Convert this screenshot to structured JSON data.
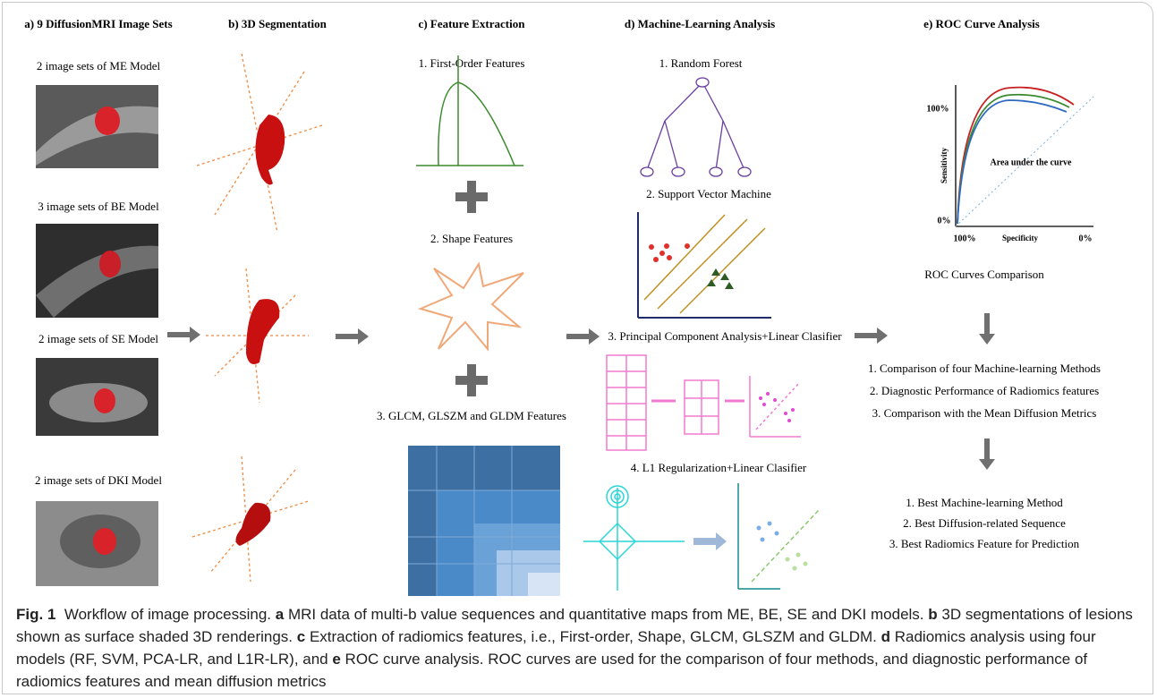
{
  "headings": [
    "a) 9 DiffusionMRI Image Sets",
    "b) 3D Segmentation",
    "c) Feature Extraction",
    "d) Machine-Learning Analysis",
    "e) ROC Curve Analysis"
  ],
  "image_sets": [
    "2 image sets of ME Model",
    "3 image sets of BE Model",
    "2 image sets of SE Model",
    "2 image sets of DKI Model"
  ],
  "features": [
    "1. First-Order Features",
    "2. Shape Features",
    "3. GLCM, GLSZM and GLDM Features"
  ],
  "ml_methods": [
    "1. Random Forest",
    "2. Support Vector Machine",
    "3. Principal Component Analysis+Linear Clasifier",
    "4. L1 Regularization+Linear Clasifier"
  ],
  "roc": {
    "y_max": "100%",
    "y_min": "0%",
    "y_label": "Sensitivity",
    "x_label": "Specificity",
    "x_left": "100%",
    "x_right": "0%",
    "area_label": "Area under the curve",
    "title": "ROC Curves Comparison"
  },
  "comparisons": [
    "1. Comparison of four Machine-learning Methods",
    "2. Diagnostic Performance of Radiomics features",
    "3. Comparison with the Mean Diffusion Metrics"
  ],
  "outcomes": [
    "1. Best Machine-learning Method",
    "2. Best Diffusion-related Sequence",
    "3. Best Radiomics Feature for Prediction"
  ],
  "caption": {
    "label": "Fig. 1",
    "parts": [
      "Workflow of image processing. ",
      "a",
      " MRI data of multi-b value sequences and quantitative maps from ME, BE, SE and DKI models. ",
      "b",
      " 3D segmentations of lesions shown as surface shaded 3D renderings. ",
      "c",
      " Extraction of radiomics features, i.e., First-order, Shape, GLCM, GLSZM and GLDM. ",
      "d",
      " Radiomics analysis using four models (RF, SVM, PCA-LR, and L1R-LR), and ",
      "e",
      " ROC curve analysis. ROC curves are used for the comparison of four methods, and diagnostic performance of radiomics features and mean diffusion metrics"
    ]
  }
}
